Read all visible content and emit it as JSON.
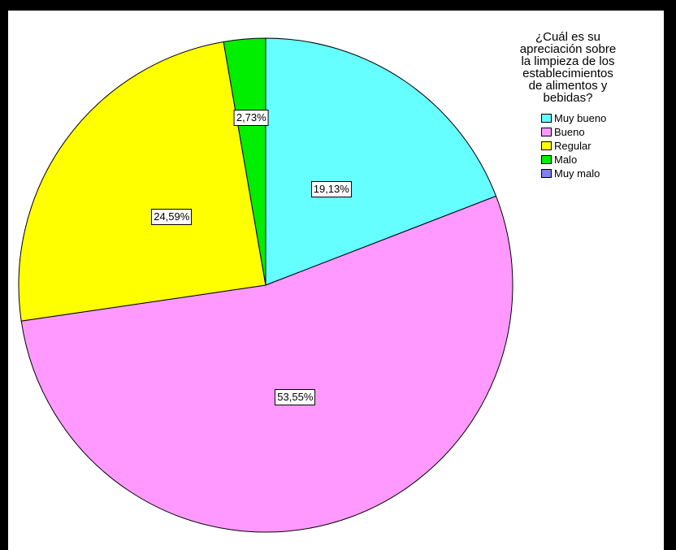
{
  "chart_data": {
    "type": "pie",
    "title": "¿Cuál es su\napreciación sobre\nla limpieza de los\nestablecimientos\nde alimentos y\nbebidas?",
    "categories": [
      "Muy bueno",
      "Bueno",
      "Regular",
      "Malo",
      "Muy malo"
    ],
    "values": [
      19.13,
      53.55,
      24.59,
      2.73,
      0
    ],
    "labels": [
      "19,13%",
      "53,55%",
      "24,59%",
      "2,73%",
      ""
    ],
    "colors": [
      "#66ffff",
      "#ff99ff",
      "#ffff00",
      "#00ee00",
      "#8080ee"
    ],
    "start_angle": "12 o'clock",
    "direction": "clockwise",
    "legend_position": "top-right"
  }
}
